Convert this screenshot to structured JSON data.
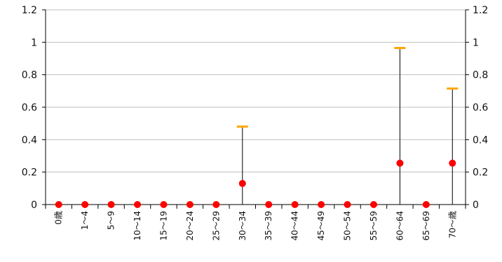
{
  "chart_data": {
    "type": "scatter",
    "title": "",
    "xlabel": "",
    "ylabel": "",
    "ylim": [
      0,
      1.2
    ],
    "y_ticks": [
      "0",
      "0.2",
      "0.4",
      "0.6",
      "0.8",
      "1",
      "1.2"
    ],
    "y_ticks_right": [
      "0",
      "0.2",
      "0.4",
      "0.6",
      "0.8",
      "1",
      "1.2"
    ],
    "grid": true,
    "legend": "none",
    "categories": [
      "0歳",
      "1～4",
      "5～9",
      "10～14",
      "15～19",
      "20～24",
      "25～29",
      "30～34",
      "35～39",
      "40～44",
      "45～49",
      "50～54",
      "55～59",
      "60～64",
      "65～69",
      "70～歳"
    ],
    "series": [
      {
        "values": [
          0,
          0,
          0,
          0,
          0,
          0,
          0,
          0.13,
          0,
          0,
          0,
          0,
          0,
          0.255,
          0,
          0.255
        ],
        "marker": "circle",
        "color": "#ff0000",
        "zero_marker_color": "#22cc22"
      }
    ],
    "error_bars": {
      "lower": [
        0,
        0,
        0,
        0,
        0,
        0,
        0,
        0,
        0,
        0,
        0,
        0,
        0,
        0,
        0,
        0
      ],
      "upper": [
        0,
        0,
        0,
        0,
        0,
        0,
        0,
        0.48,
        0,
        0,
        0,
        0,
        0,
        0.965,
        0,
        0.715
      ],
      "line_color": "#000000",
      "cap_color": "#ffa500"
    },
    "colors": {
      "axis": "#000000",
      "grid": "#bfbfbf"
    }
  }
}
